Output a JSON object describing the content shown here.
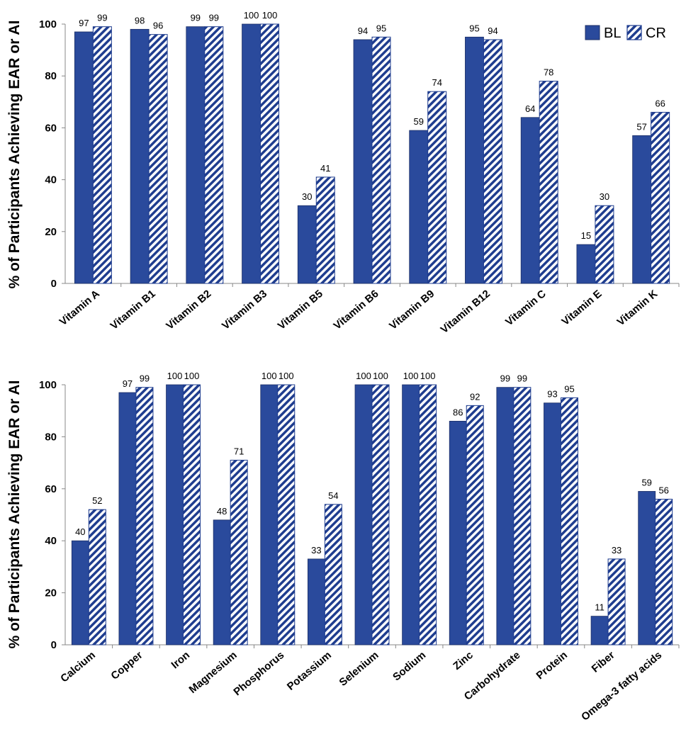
{
  "colors": {
    "bl": "#2a4a9c",
    "cr_stripe": "#1f3d8f",
    "axis": "#888888"
  },
  "legend": {
    "bl_label": "BL",
    "cr_label": "CR"
  },
  "chart_data": [
    {
      "type": "bar",
      "ylabel": "% of Participants Achieving EAR or AI",
      "xlabel": "",
      "ylim": [
        0,
        100
      ],
      "yticks": [
        0,
        20,
        40,
        60,
        80,
        100
      ],
      "legend_position": "top-right",
      "categories": [
        "Vitamin A",
        "Vitamin B1",
        "Vitamin B2",
        "Vitamin B3",
        "Vitamin B5",
        "Vitamin B6",
        "Vitamin B9",
        "Vitamin B12",
        "Vitamin C",
        "Vitamin E",
        "Vitamin K"
      ],
      "series": [
        {
          "name": "BL",
          "values": [
            97,
            98,
            99,
            100,
            30,
            94,
            59,
            95,
            64,
            15,
            57
          ]
        },
        {
          "name": "CR",
          "values": [
            99,
            96,
            99,
            100,
            41,
            95,
            74,
            94,
            78,
            30,
            66
          ]
        }
      ]
    },
    {
      "type": "bar",
      "ylabel": "% of Participants Achieving EAR or AI",
      "xlabel": "",
      "ylim": [
        0,
        100
      ],
      "yticks": [
        0,
        20,
        40,
        60,
        80,
        100
      ],
      "categories": [
        "Calcium",
        "Copper",
        "Iron",
        "Magnesium",
        "Phosphorus",
        "Potassium",
        "Selenium",
        "Sodium",
        "Zinc",
        "Carbohydrate",
        "Protein",
        "Fiber",
        "Omega-3 fatty acids"
      ],
      "series": [
        {
          "name": "BL",
          "values": [
            40,
            97,
            100,
            48,
            100,
            33,
            100,
            100,
            86,
            99,
            93,
            11,
            59
          ]
        },
        {
          "name": "CR",
          "values": [
            52,
            99,
            100,
            71,
            100,
            54,
            100,
            100,
            92,
            99,
            95,
            33,
            56
          ]
        }
      ]
    }
  ]
}
